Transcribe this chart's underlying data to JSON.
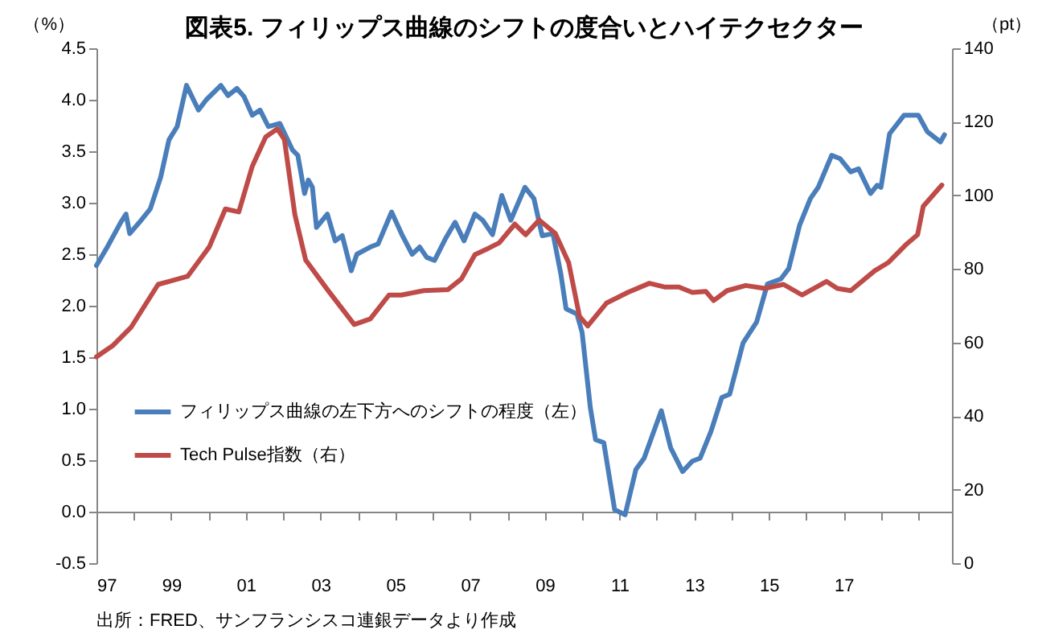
{
  "chart_data": {
    "type": "line",
    "title": "図表5. フィリップス曲線のシフトの度合いとハイテクセクター",
    "ylabel": "（%）",
    "y2label": "（pt）",
    "annotations": [
      "出所：FRED、サンフランシスコ連銀データより作成"
    ],
    "xlim": [
      1997,
      2019.9
    ],
    "xticks": [
      {
        "value": 1997,
        "label": "97"
      },
      {
        "value": 1998,
        "label": null
      },
      {
        "value": 1999,
        "label": "99"
      },
      {
        "value": 2000,
        "label": null
      },
      {
        "value": 2001,
        "label": "01"
      },
      {
        "value": 2002,
        "label": null
      },
      {
        "value": 2003,
        "label": "03"
      },
      {
        "value": 2004,
        "label": null
      },
      {
        "value": 2005,
        "label": "05"
      },
      {
        "value": 2006,
        "label": null
      },
      {
        "value": 2007,
        "label": "07"
      },
      {
        "value": 2008,
        "label": null
      },
      {
        "value": 2009,
        "label": "09"
      },
      {
        "value": 2010,
        "label": null
      },
      {
        "value": 2011,
        "label": "11"
      },
      {
        "value": 2012,
        "label": null
      },
      {
        "value": 2013,
        "label": "13"
      },
      {
        "value": 2014,
        "label": null
      },
      {
        "value": 2015,
        "label": "15"
      },
      {
        "value": 2016,
        "label": null
      },
      {
        "value": 2017,
        "label": "17"
      },
      {
        "value": 2018,
        "label": null
      },
      {
        "value": 2019,
        "label": null
      }
    ],
    "ylim": [
      -0.5,
      4.5
    ],
    "yticks": [
      {
        "value": -0.5,
        "label": "-0.5"
      },
      {
        "value": 0,
        "label": "0.0"
      },
      {
        "value": 0.5,
        "label": "0.5"
      },
      {
        "value": 1,
        "label": "1.0"
      },
      {
        "value": 1.5,
        "label": "1.5"
      },
      {
        "value": 2,
        "label": "2.0"
      },
      {
        "value": 2.5,
        "label": "2.5"
      },
      {
        "value": 3,
        "label": "3.0"
      },
      {
        "value": 3.5,
        "label": "3.5"
      },
      {
        "value": 4,
        "label": "4.0"
      },
      {
        "value": 4.5,
        "label": "4.5"
      }
    ],
    "y2lim": [
      0,
      140
    ],
    "y2ticks": [
      0,
      20,
      40,
      60,
      80,
      100,
      120,
      140
    ],
    "legend": "left",
    "series": [
      {
        "name": "フィリップス曲線の左下方へのシフトの程度（左）",
        "color": "#4a7ebb",
        "x": [
          1997.0,
          1997.29,
          1997.65,
          1997.79,
          1997.89,
          1998.15,
          1998.44,
          1998.72,
          1998.94,
          1999.16,
          1999.41,
          1999.73,
          1999.94,
          2000.33,
          2000.52,
          2000.76,
          2000.95,
          2001.17,
          2001.38,
          2001.6,
          2001.91,
          2002.25,
          2002.39,
          2002.57,
          2002.67,
          2002.78,
          2002.89,
          2003.18,
          2003.39,
          2003.58,
          2003.82,
          2003.97,
          2004.33,
          2004.54,
          2004.9,
          2005.19,
          2005.45,
          2005.65,
          2005.84,
          2006.05,
          2006.34,
          2006.6,
          2006.84,
          2007.13,
          2007.34,
          2007.6,
          2007.85,
          2008.09,
          2008.47,
          2008.71,
          2008.93,
          2009.22,
          2009.43,
          2009.57,
          2009.86,
          2010.0,
          2010.22,
          2010.36,
          2010.58,
          2010.87,
          2011.15,
          2011.44,
          2011.66,
          2011.94,
          2012.12,
          2012.37,
          2012.69,
          2012.95,
          2013.16,
          2013.45,
          2013.74,
          2013.95,
          2014.31,
          2014.67,
          2014.96,
          2015.32,
          2015.53,
          2015.82,
          2016.11,
          2016.32,
          2016.68,
          2016.9,
          2017.19,
          2017.4,
          2017.72,
          2017.9,
          2018.0,
          2018.23,
          2018.62,
          2019.0,
          2019.24,
          2019.59,
          2019.7
        ],
        "values": [
          2.39,
          2.57,
          2.81,
          2.89,
          2.7,
          2.81,
          2.94,
          3.25,
          3.61,
          3.74,
          4.14,
          3.9,
          4.0,
          4.14,
          4.04,
          4.11,
          4.03,
          3.85,
          3.9,
          3.74,
          3.77,
          3.51,
          3.46,
          3.09,
          3.22,
          3.15,
          2.76,
          2.89,
          2.63,
          2.68,
          2.34,
          2.5,
          2.57,
          2.6,
          2.91,
          2.68,
          2.5,
          2.57,
          2.47,
          2.44,
          2.65,
          2.81,
          2.63,
          2.89,
          2.83,
          2.69,
          3.07,
          2.83,
          3.15,
          3.04,
          2.68,
          2.7,
          2.31,
          1.97,
          1.92,
          1.74,
          1.01,
          0.7,
          0.67,
          0.02,
          -0.03,
          0.41,
          0.52,
          0.8,
          0.98,
          0.62,
          0.39,
          0.49,
          0.52,
          0.78,
          1.11,
          1.14,
          1.64,
          1.84,
          2.21,
          2.26,
          2.36,
          2.78,
          3.04,
          3.15,
          3.46,
          3.43,
          3.3,
          3.33,
          3.09,
          3.17,
          3.15,
          3.67,
          3.85,
          3.85,
          3.69,
          3.59,
          3.66
        ]
      },
      {
        "name": "Tech Pulse指数（右）",
        "color": "#be4b48",
        "axis": "y2",
        "x": [
          1997.0,
          1997.43,
          1997.93,
          1998.65,
          1998.94,
          1999.44,
          2000.02,
          2000.45,
          2000.81,
          2001.17,
          2001.53,
          2001.84,
          2002.03,
          2002.31,
          2002.6,
          2003.18,
          2003.9,
          2004.33,
          2004.83,
          2005.16,
          2005.76,
          2006.41,
          2006.77,
          2007.13,
          2007.49,
          2007.78,
          2008.2,
          2008.49,
          2008.85,
          2009.28,
          2009.64,
          2009.93,
          2010.15,
          2010.65,
          2011.22,
          2011.8,
          2012.2,
          2012.59,
          2012.95,
          2013.31,
          2013.52,
          2013.88,
          2014.38,
          2014.89,
          2015.39,
          2015.89,
          2016.54,
          2016.83,
          2017.19,
          2017.83,
          2018.19,
          2018.69,
          2018.98,
          2019.13,
          2019.63
        ],
        "values": [
          56.1,
          59.1,
          64.2,
          75.8,
          76.6,
          78.0,
          86.0,
          96.3,
          95.5,
          107.9,
          115.9,
          118.1,
          115.2,
          94.8,
          82.4,
          74.4,
          64.9,
          66.4,
          72.9,
          72.9,
          74.1,
          74.4,
          77.3,
          83.9,
          85.6,
          87.1,
          92.2,
          89.3,
          93.3,
          89.7,
          81.7,
          67.1,
          64.5,
          70.7,
          73.6,
          76.1,
          75.1,
          75.1,
          73.6,
          73.9,
          71.4,
          74.1,
          75.5,
          74.7,
          75.8,
          72.9,
          76.6,
          74.7,
          74.1,
          79.5,
          81.7,
          86.8,
          89.3,
          97.0,
          102.8
        ]
      }
    ]
  }
}
